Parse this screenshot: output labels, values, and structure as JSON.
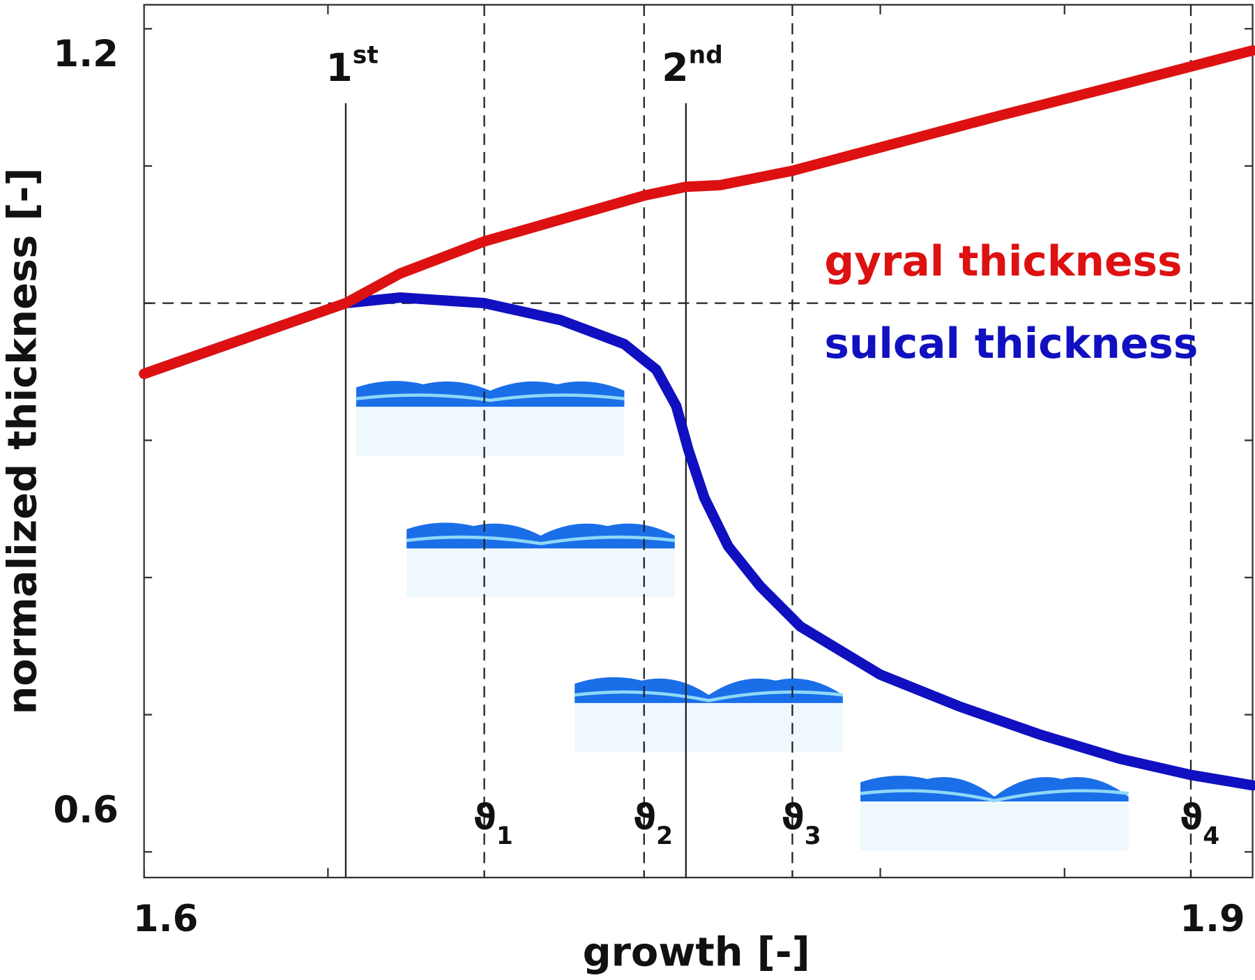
{
  "chart_data": {
    "type": "line",
    "xlabel": "growth [-]",
    "ylabel": "normalized thickness [-]",
    "xlim": [
      1.6,
      1.9177
    ],
    "ylim": [
      0.5813,
      1.2175
    ],
    "xticks": [
      1.6,
      1.9
    ],
    "yticks": [
      0.6,
      1.2
    ],
    "xticks_minor": [
      1.6527,
      1.811,
      1.8638
    ],
    "yticks_minor": [
      0.7,
      0.8,
      0.9,
      1.0,
      1.1
    ],
    "series": [
      {
        "name": "sulcal thickness",
        "color": "#1010c0",
        "x": [
          1.6,
          1.6578,
          1.6734,
          1.6975,
          1.7193,
          1.7376,
          1.7468,
          1.7525,
          1.756,
          1.7606,
          1.7674,
          1.7766,
          1.7881,
          1.811,
          1.8339,
          1.8569,
          1.8798,
          1.9,
          1.9177
        ],
        "values": [
          0.9485,
          1.0,
          1.0041,
          1.0,
          0.9877,
          0.9702,
          0.9515,
          0.9251,
          0.893,
          0.8579,
          0.8228,
          0.7936,
          0.7643,
          0.7292,
          0.7058,
          0.6854,
          0.6678,
          0.6561,
          0.6485
        ]
      },
      {
        "name": "gyral thickness",
        "color": "#dd1111",
        "x": [
          1.6,
          1.6578,
          1.6734,
          1.6975,
          1.7433,
          1.7553,
          1.7651,
          1.7858,
          1.811,
          1.8454,
          1.8798,
          1.9,
          1.9177
        ],
        "values": [
          0.9485,
          1.0,
          1.0216,
          1.045,
          1.0784,
          1.0848,
          1.086,
          1.0965,
          1.1135,
          1.1368,
          1.1591,
          1.1725,
          1.1842
        ]
      }
    ],
    "hlines": [
      1.0
    ],
    "vlines": [
      {
        "x": 1.6578,
        "style": "solid",
        "base": "1",
        "sup": "st"
      },
      {
        "x": 1.7553,
        "style": "solid",
        "base": "2",
        "sup": "nd"
      },
      {
        "x": 1.6975,
        "style": "dashed",
        "base": "ϑ",
        "sub": "1"
      },
      {
        "x": 1.7433,
        "style": "dashed",
        "base": "ϑ",
        "sub": "2"
      },
      {
        "x": 1.7858,
        "style": "dashed",
        "base": "ϑ",
        "sub": "3"
      },
      {
        "x": 1.9,
        "style": "dashed",
        "base": "ϑ",
        "sub": "4"
      }
    ]
  }
}
